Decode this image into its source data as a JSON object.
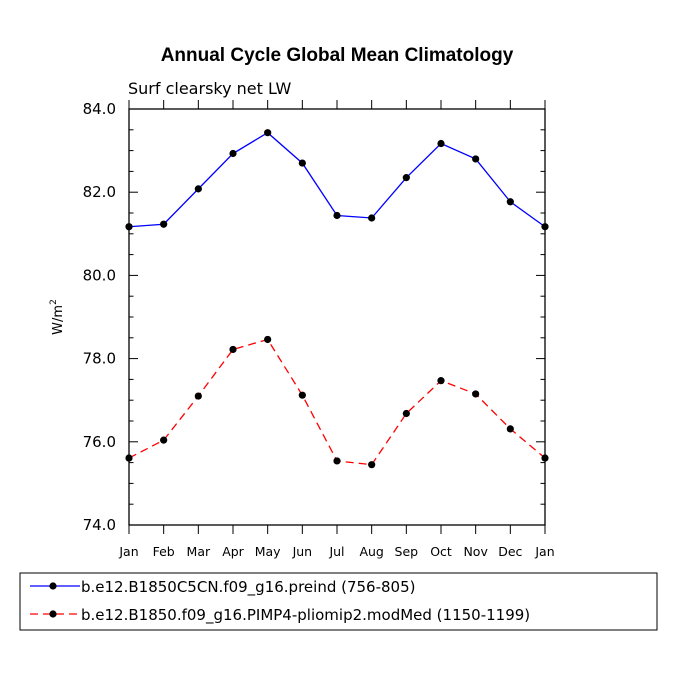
{
  "chart_data": {
    "type": "line",
    "title": "Annual Cycle Global Mean Climatology",
    "subtitle": "Surf clearsky net LW",
    "ylabel_base": "W/m",
    "ylabel_sup": "2",
    "xlabel": "",
    "categories": [
      "Jan",
      "Feb",
      "Mar",
      "Apr",
      "May",
      "Jun",
      "Jul",
      "Aug",
      "Sep",
      "Oct",
      "Nov",
      "Dec",
      "Jan"
    ],
    "ylim": [
      74.0,
      84.0
    ],
    "yticks": [
      "74.0",
      "76.0",
      "78.0",
      "80.0",
      "82.0",
      "84.0"
    ],
    "series": [
      {
        "name": "b.e12.B1850C5CN.f09_g16.preind (756-805)",
        "color": "#0000ff",
        "dash": "solid",
        "values": [
          81.17,
          81.23,
          82.08,
          82.93,
          83.43,
          82.7,
          81.44,
          81.38,
          82.35,
          83.17,
          82.8,
          81.77,
          81.17
        ]
      },
      {
        "name": "b.e12.B1850.f09_g16.PIMP4-pliomip2.modMed (1150-1199)",
        "color": "#ff0000",
        "dash": "dashed",
        "values": [
          75.61,
          76.04,
          77.1,
          78.22,
          78.46,
          77.12,
          75.54,
          75.45,
          76.68,
          77.47,
          77.15,
          76.31,
          75.61
        ]
      }
    ],
    "legend_position": "bottom"
  }
}
